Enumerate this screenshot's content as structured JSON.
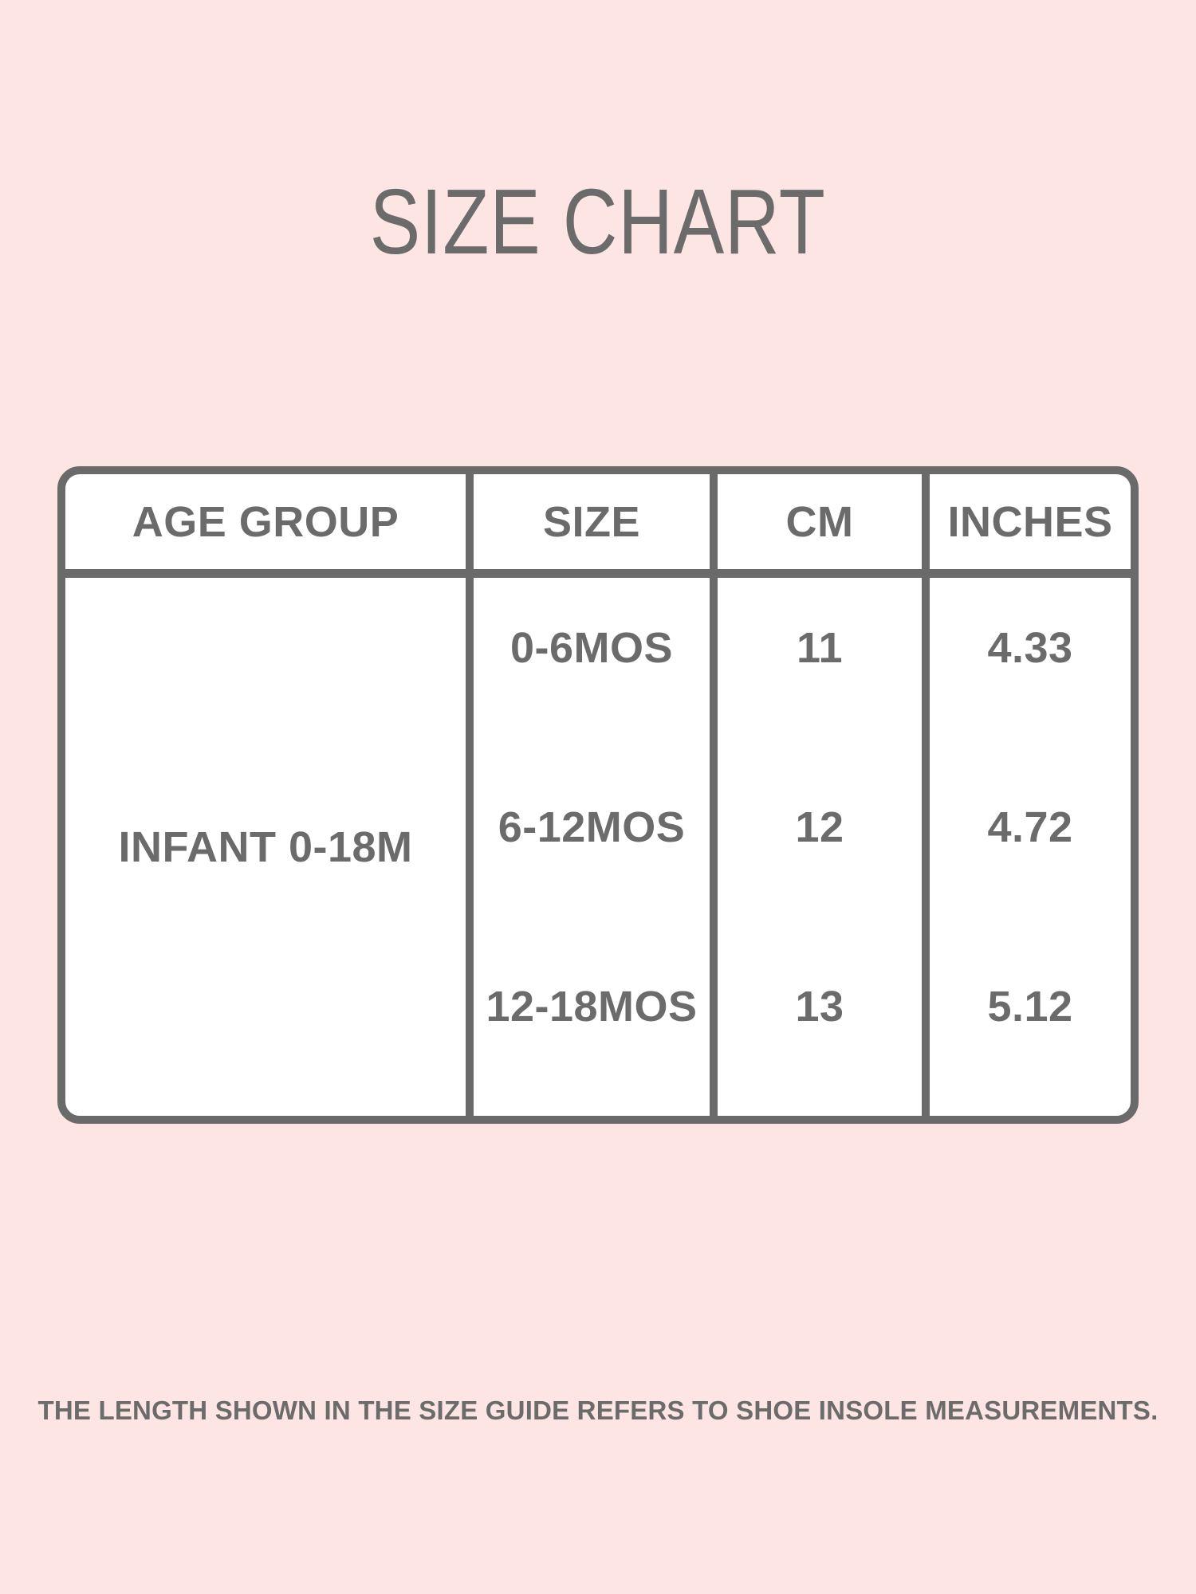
{
  "title": "SIZE CHART",
  "colors": {
    "background": "#fce5e3",
    "line": "#6a6a6a",
    "text": "#6b6b6b",
    "cell_background": "#ffffff"
  },
  "table": {
    "headers": [
      "AGE GROUP",
      "SIZE",
      "CM",
      "INCHES"
    ],
    "age_group": "INFANT 0-18M",
    "rows": [
      {
        "size": "0-6MOS",
        "cm": "11",
        "inches": "4.33"
      },
      {
        "size": "6-12MOS",
        "cm": "12",
        "inches": "4.72"
      },
      {
        "size": "12-18MOS",
        "cm": "13",
        "inches": "5.12"
      }
    ]
  },
  "footer_note": "THE LENGTH SHOWN IN THE SIZE GUIDE REFERS TO SHOE INSOLE MEASUREMENTS.",
  "chart_data": {
    "type": "table",
    "title": "SIZE CHART",
    "columns": [
      "AGE GROUP",
      "SIZE",
      "CM",
      "INCHES"
    ],
    "rows": [
      [
        "INFANT 0-18M",
        "0-6MOS",
        11,
        4.33
      ],
      [
        "INFANT 0-18M",
        "6-12MOS",
        12,
        4.72
      ],
      [
        "INFANT 0-18M",
        "12-18MOS",
        13,
        5.12
      ]
    ]
  }
}
